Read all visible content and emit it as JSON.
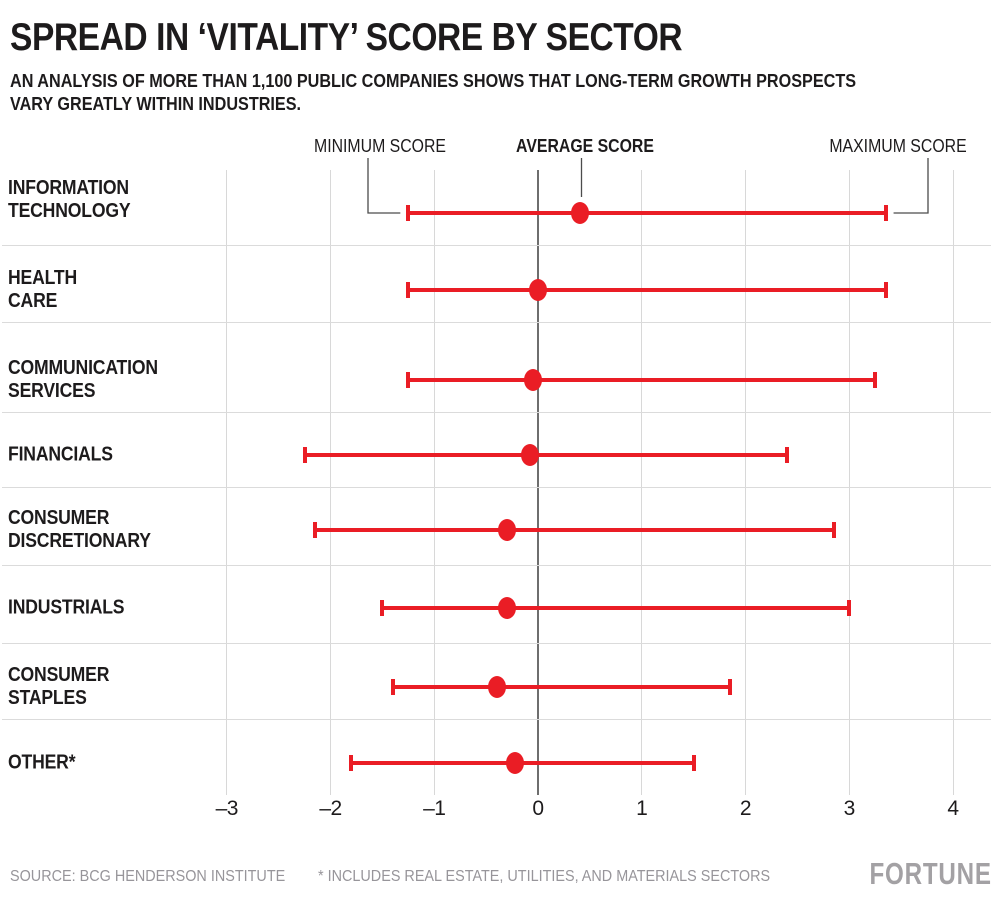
{
  "header": {
    "title": "SPREAD IN ‘VITALITY’ SCORE BY SECTOR",
    "subtitle_line1": "AN ANALYSIS OF MORE THAN 1,100 PUBLIC COMPANIES SHOWS THAT LONG-TERM GROWTH PROSPECTS",
    "subtitle_line2": "VARY GREATLY WITHIN INDUSTRIES."
  },
  "legend": {
    "min_label": "MINIMUM SCORE",
    "avg_label": "AVERAGE SCORE",
    "max_label": "MAXIMUM SCORE"
  },
  "chart_data": {
    "type": "range-dot",
    "title": "Spread in 'Vitality' score by sector",
    "categories": [
      [
        "INFORMATION",
        "TECHNOLOGY"
      ],
      [
        "HEALTH",
        "CARE"
      ],
      [
        "COMMUNICATION",
        "SERVICES"
      ],
      [
        "FINANCIALS"
      ],
      [
        "CONSUMER",
        "DISCRETIONARY"
      ],
      [
        "INDUSTRIALS"
      ],
      [
        "CONSUMER",
        "STAPLES"
      ],
      [
        "OTHER*"
      ]
    ],
    "series": [
      {
        "name": "Minimum score",
        "values": [
          -1.25,
          -1.25,
          -1.25,
          -2.25,
          -2.15,
          -1.5,
          -1.4,
          -1.8
        ]
      },
      {
        "name": "Average score",
        "values": [
          0.4,
          0.0,
          -0.05,
          -0.08,
          -0.3,
          -0.3,
          -0.4,
          -0.22
        ]
      },
      {
        "name": "Maximum score",
        "values": [
          3.35,
          3.35,
          3.25,
          2.4,
          2.85,
          3.0,
          1.85,
          1.5
        ]
      }
    ],
    "xticks": {
      "values": [
        -3,
        -2,
        -1,
        0,
        1,
        2,
        3,
        4
      ],
      "labels": [
        "–3",
        "–2",
        "–1",
        "0",
        "1",
        "2",
        "3",
        "4"
      ]
    },
    "xlim": [
      -3,
      4
    ],
    "xlabel": "",
    "ylabel": "",
    "grid": true,
    "zero_line": true,
    "legend_position": "top",
    "colors": {
      "range": "#ea1d25",
      "grid": "#d8d8d8",
      "zero_line": "#6e6e6e",
      "connector": "#4c4c4c",
      "text": "#1d1b1c",
      "muted": "#97959a"
    }
  },
  "footer": {
    "source": "SOURCE: BCG HENDERSON INSTITUTE",
    "note": "* INCLUDES REAL ESTATE, UTILITIES, AND MATERIALS SECTORS",
    "brand": "FORTUNE"
  }
}
